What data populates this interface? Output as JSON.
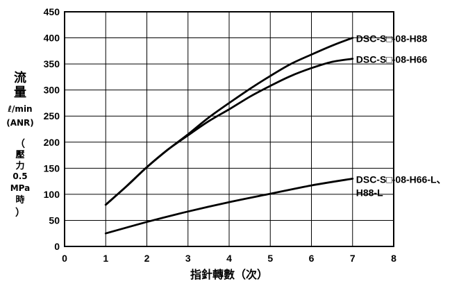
{
  "chart_data": {
    "type": "line",
    "xlabel": "指針轉數（次）",
    "ylabel_lines": [
      "流",
      "量",
      "ℓ/min",
      "(ANR)",
      "（",
      "壓",
      "力",
      "0.5",
      "MPa",
      "時",
      "）"
    ],
    "xlim": [
      0,
      8
    ],
    "ylim": [
      0,
      450
    ],
    "x_ticks": [
      "0",
      "1",
      "2",
      "3",
      "4",
      "5",
      "6",
      "7",
      "8"
    ],
    "y_ticks": [
      "0",
      "50",
      "100",
      "150",
      "200",
      "250",
      "300",
      "350",
      "400",
      "450"
    ],
    "grid": true,
    "series": [
      {
        "name": "DSC-S□-08-H88",
        "x": [
          1,
          1.5,
          2,
          2.5,
          3,
          3.5,
          4,
          4.5,
          5,
          5.5,
          6,
          6.5,
          7
        ],
        "y": [
          80,
          115,
          152,
          185,
          215,
          247,
          275,
          302,
          327,
          350,
          368,
          385,
          400
        ]
      },
      {
        "name": "DSC-S□-08-H66",
        "x": [
          1,
          1.5,
          2,
          2.5,
          3,
          3.5,
          4,
          4.5,
          5,
          5.5,
          6,
          6.5,
          7
        ],
        "y": [
          80,
          115,
          152,
          185,
          213,
          240,
          263,
          287,
          308,
          327,
          342,
          354,
          360
        ]
      },
      {
        "name": "DSC-S□-08-H66-L、H88-L",
        "x": [
          1,
          2,
          3,
          4,
          5,
          6,
          7
        ],
        "y": [
          25,
          47,
          67,
          85,
          101,
          117,
          130
        ]
      }
    ],
    "series_labels": [
      {
        "lines": [
          "DSC-S□-08-H88"
        ]
      },
      {
        "lines": [
          "DSC-S□-08-H66"
        ]
      },
      {
        "lines": [
          "DSC-S□-08-H66-L、",
          "H88-L"
        ]
      }
    ]
  }
}
